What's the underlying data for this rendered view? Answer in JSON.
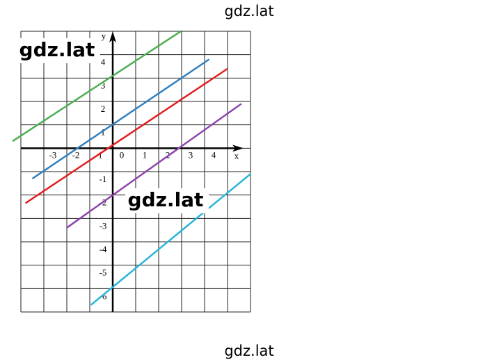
{
  "chart_data": {
    "type": "line",
    "xlabel": "x",
    "ylabel": "y",
    "xlim": [
      -4,
      6
    ],
    "ylim": [
      -7,
      5
    ],
    "xticks": [
      -3,
      -2,
      -1,
      0,
      1,
      2,
      3,
      4
    ],
    "yticks": [
      -6,
      -5,
      -4,
      -3,
      -2,
      -1,
      1,
      2,
      3,
      4
    ],
    "grid": true,
    "series": [
      {
        "color": "#4caf50",
        "x": [
          -4.36,
          2.97
        ],
        "values": [
          0.3,
          5.0
        ]
      },
      {
        "color": "#2f7fbf",
        "x": [
          -3.5,
          4.2
        ],
        "values": [
          -1.3,
          3.8
        ]
      },
      {
        "color": "#e02020",
        "x": [
          -3.8,
          5.0
        ],
        "values": [
          -2.35,
          3.4
        ]
      },
      {
        "color": "#8e44ad",
        "x": [
          -2.0,
          5.6
        ],
        "values": [
          -3.4,
          1.9
        ]
      },
      {
        "color": "#27b5d9",
        "x": [
          -0.95,
          6.0
        ],
        "values": [
          -6.7,
          -1.1
        ]
      }
    ],
    "annotations": [
      "gdz.lat",
      "gdz.lat",
      "gdz.lat",
      "gdz.lat"
    ]
  }
}
